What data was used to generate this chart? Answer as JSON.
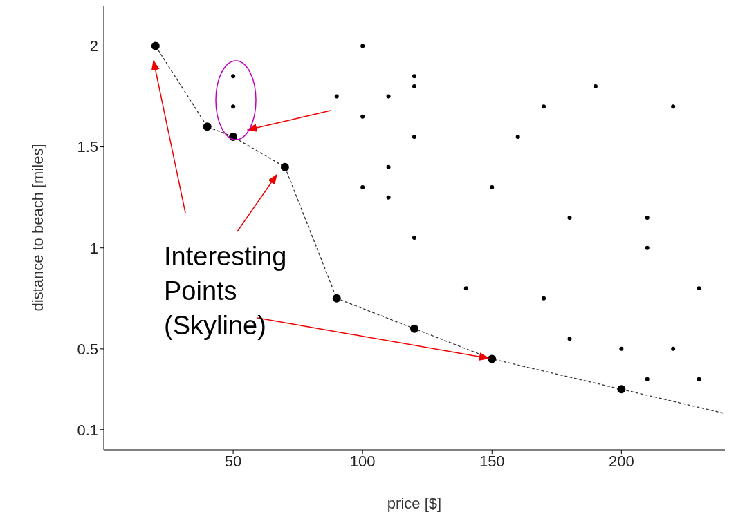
{
  "chart_data": {
    "type": "scatter",
    "xlabel": "price [$]",
    "ylabel": "distance to beach [miles]",
    "xlim": [
      0,
      240
    ],
    "ylim": [
      0,
      2.2
    ],
    "xticks": [
      50,
      100,
      150,
      200
    ],
    "yticks": [
      0.1,
      0.5,
      1,
      1.5,
      2
    ],
    "grid": false,
    "legend": false,
    "annotations": [
      {
        "text": "Interesting\nPoints\n(Skyline)",
        "x": 150,
        "y": 0.45
      }
    ],
    "series": [
      {
        "type": "line",
        "color": "#333333",
        "line_style": "dashed",
        "marker": "none",
        "x": [
          20,
          40,
          50,
          70,
          90,
          120,
          150,
          200,
          240
        ],
        "values": [
          2.0,
          1.6,
          1.55,
          1.4,
          0.75,
          0.6,
          0.45,
          0.3,
          0.18
        ]
      },
      {
        "color": "#000000",
        "marker": "circle",
        "x": [
          20,
          40,
          50,
          70,
          90,
          120,
          150,
          200
        ],
        "values": [
          2.0,
          1.6,
          1.55,
          1.4,
          0.75,
          0.6,
          0.45,
          0.3
        ]
      },
      {
        "color": "#000000",
        "marker": "circle",
        "x": [
          50,
          50,
          100,
          90,
          100,
          110,
          120,
          120,
          120,
          110,
          100,
          110,
          120,
          140,
          150,
          160,
          170,
          190,
          220,
          180,
          210,
          210,
          170,
          230,
          180,
          200,
          220,
          210,
          230
        ],
        "values": [
          1.85,
          1.7,
          2.0,
          1.75,
          1.65,
          1.75,
          1.85,
          1.8,
          1.55,
          1.4,
          1.3,
          1.25,
          1.05,
          0.8,
          1.3,
          1.55,
          1.7,
          1.8,
          1.7,
          1.15,
          1.15,
          1.0,
          0.75,
          0.8,
          0.55,
          0.5,
          0.5,
          0.35,
          0.35
        ]
      }
    ]
  }
}
